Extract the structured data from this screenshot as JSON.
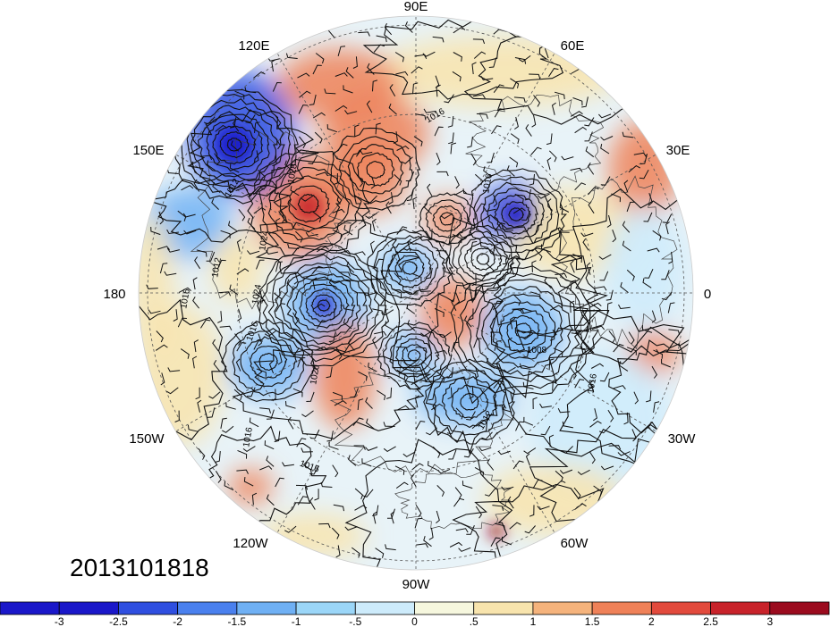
{
  "date_label": "2013101818",
  "longitude_labels": {
    "top": "90E",
    "top_left": "120E",
    "top_right": "60E",
    "upper_left": "150E",
    "upper_right": "30E",
    "left": "180",
    "right": "0",
    "lower_left": "150W",
    "lower_right": "30W",
    "bottom_left": "120W",
    "bottom_right": "60W",
    "bottom": "90W"
  },
  "isobar_labels": [
    "1016",
    "1008",
    "1012",
    "1028",
    "1024",
    "1016",
    "1012",
    "1024",
    "1016",
    "1020",
    "1016",
    "1016",
    "1008",
    "1012",
    "1016",
    "1016"
  ],
  "colorbar": {
    "tick_labels": [
      "-3",
      "-2.5",
      "-2",
      "-1.5",
      "-1",
      "-.5",
      "0",
      ".5",
      "1",
      "1.5",
      "2",
      "2.5",
      "3"
    ],
    "colors": [
      "#1a17c9",
      "#2f4fe0",
      "#4a80ee",
      "#6fb0f4",
      "#9bd6f8",
      "#cdebfb",
      "#f6f7de",
      "#f8e4ad",
      "#f5b37c",
      "#ef8158",
      "#e24a3c",
      "#c8222a",
      "#9b0b1e"
    ]
  },
  "anomaly_colors": {
    "strong_negative": "#2f4fe0",
    "negative": "#6fb0f4",
    "weak_negative": "#cdebfb",
    "weak_positive": "#f8e4ad",
    "positive": "#ef8158",
    "strong_positive": "#c8222a"
  }
}
